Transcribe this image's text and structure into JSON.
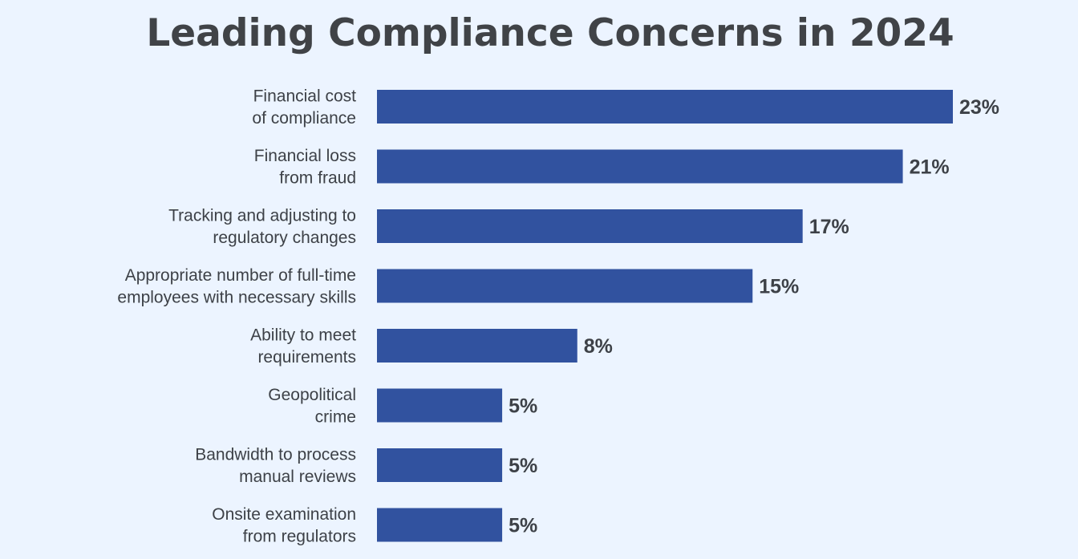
{
  "chart_data": {
    "type": "bar",
    "orientation": "horizontal",
    "title": "Leading Compliance Concerns in 2024",
    "xlabel": "",
    "ylabel": "",
    "value_suffix": "%",
    "xlim": [
      0,
      23
    ],
    "grid": false,
    "legend": "none",
    "bar_color": "#31529f",
    "background_color": "#ecf4ff",
    "text_color": "#3d4147",
    "categories": [
      [
        "Financial cost",
        "of compliance"
      ],
      [
        "Financial loss",
        "from fraud"
      ],
      [
        "Tracking and adjusting to",
        "regulatory changes"
      ],
      [
        "Appropriate number of full-time",
        "employees with necessary skills"
      ],
      [
        "Ability to meet",
        "requirements"
      ],
      [
        "Geopolitical",
        "crime"
      ],
      [
        "Bandwidth to process",
        "manual reviews"
      ],
      [
        "Onsite examination",
        "from regulators"
      ]
    ],
    "values": [
      23,
      21,
      17,
      15,
      8,
      5,
      5,
      5
    ],
    "value_labels": [
      "23%",
      "21%",
      "17%",
      "15%",
      "8%",
      "5%",
      "5%",
      "5%"
    ]
  }
}
